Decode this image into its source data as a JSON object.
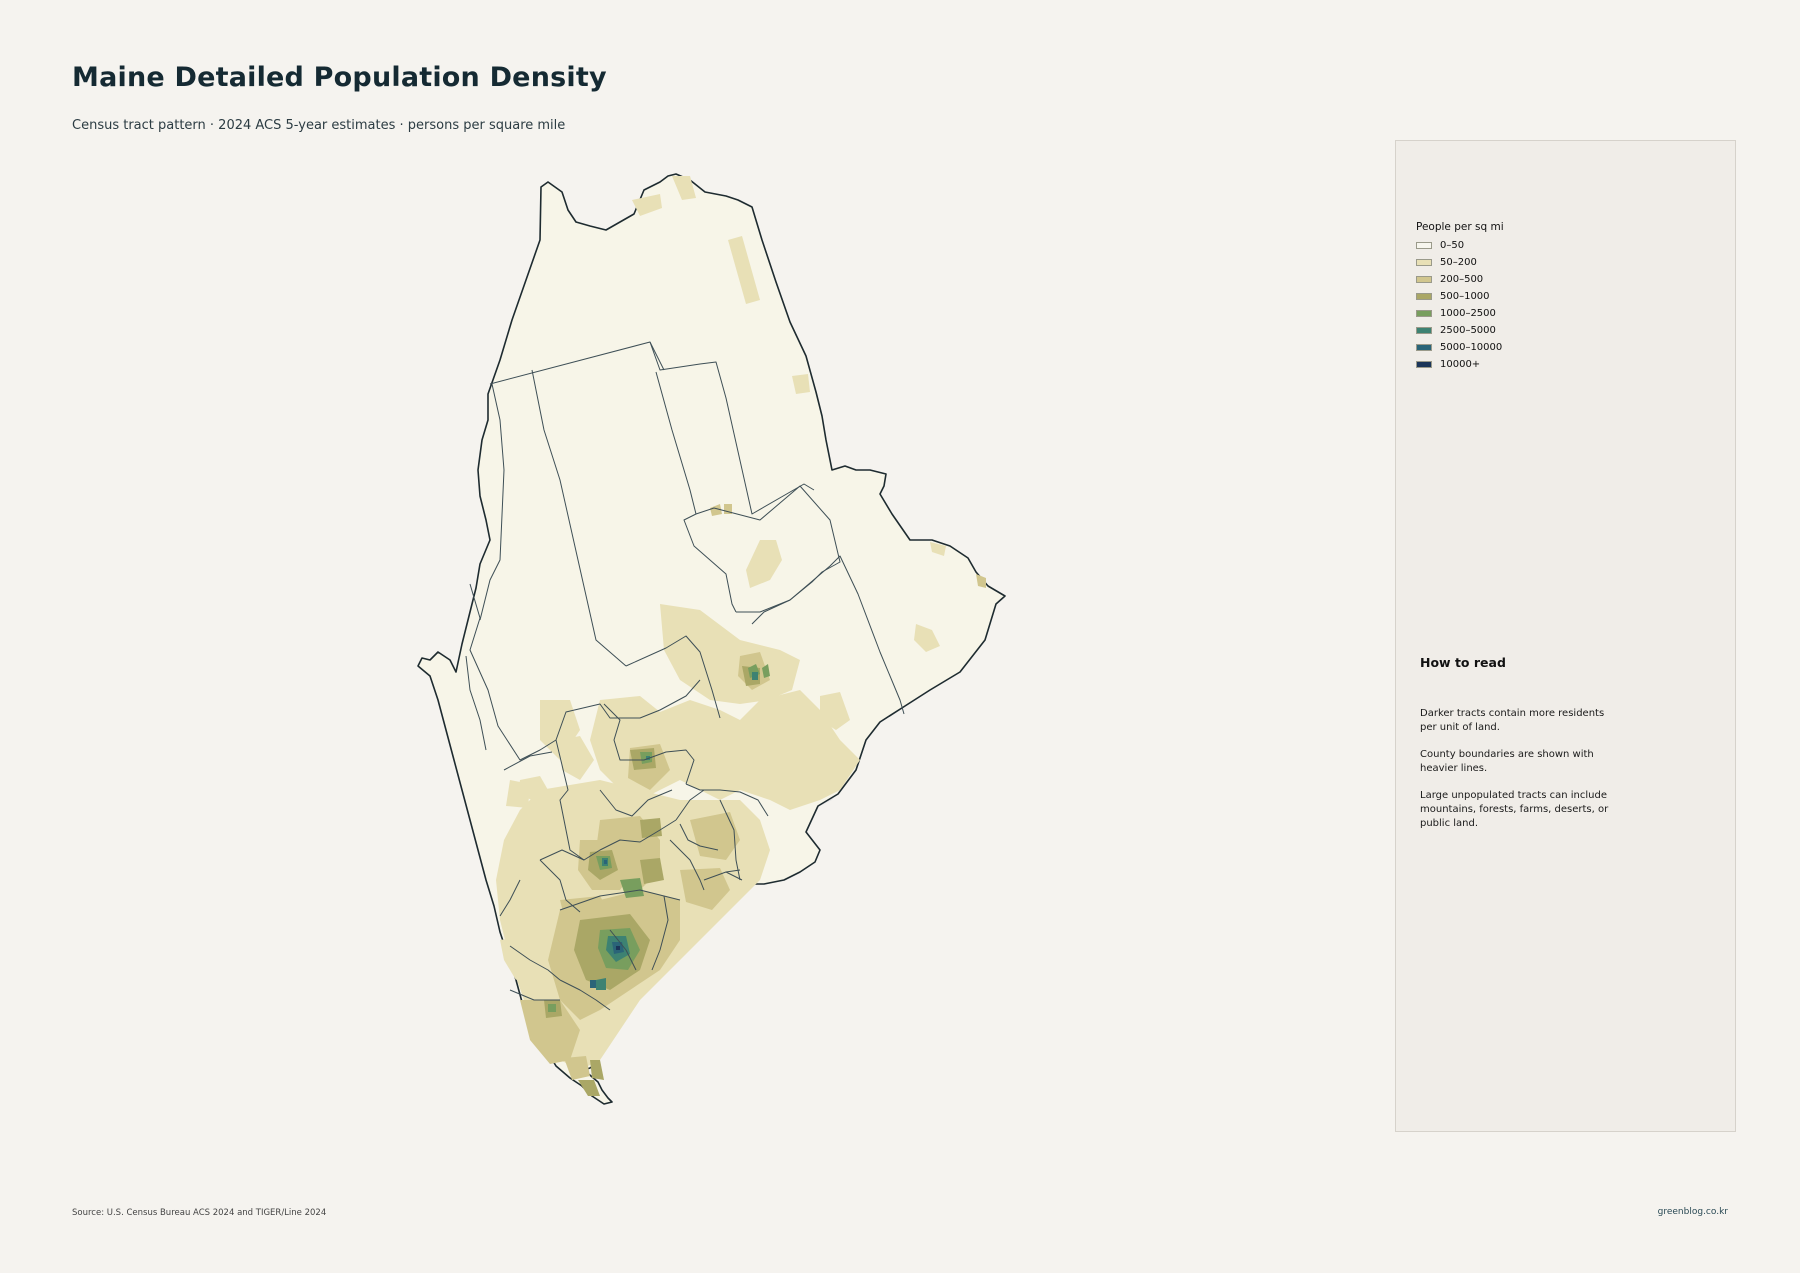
{
  "header": {
    "title": "Maine Detailed Population Density",
    "subtitle": "Census tract pattern · 2024 ACS 5-year estimates · persons per square mile"
  },
  "legend": {
    "title": "People per sq mi",
    "items": [
      {
        "label": "0–50",
        "color": "#f7f6ee"
      },
      {
        "label": "50–200",
        "color": "#e8e0b6"
      },
      {
        "label": "200–500",
        "color": "#d1c68e"
      },
      {
        "label": "500–1000",
        "color": "#aaa766"
      },
      {
        "label": "1000–2500",
        "color": "#789e5e"
      },
      {
        "label": "2500–5000",
        "color": "#3d8272"
      },
      {
        "label": "5000–10000",
        "color": "#2a6478"
      },
      {
        "label": "10000+",
        "color": "#1b3559"
      }
    ]
  },
  "how_to_read": {
    "title": "How to read",
    "paragraphs": [
      "Darker tracts contain more residents per unit of land.",
      "County boundaries are shown with heavier lines.",
      "Large unpopulated tracts can include mountains, forests, farms, deserts, or public land."
    ]
  },
  "footer": {
    "source": "Source: U.S. Census Bureau ACS 2024 and TIGER/Line 2024",
    "credit": "greenblog.co.kr"
  },
  "colors": {
    "background": "#f5f3ef",
    "panel": "#f0ede8",
    "state_fill": "#f7f5e8",
    "water": "#e6e6e6",
    "outline": "#1e2b30"
  }
}
